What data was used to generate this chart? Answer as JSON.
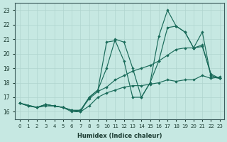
{
  "xlabel": "Humidex (Indice chaleur)",
  "xlim": [
    -0.5,
    23.5
  ],
  "ylim": [
    15.5,
    23.5
  ],
  "xticks": [
    0,
    1,
    2,
    3,
    4,
    5,
    6,
    7,
    8,
    9,
    10,
    11,
    12,
    13,
    14,
    15,
    16,
    17,
    18,
    19,
    20,
    21,
    22,
    23
  ],
  "yticks": [
    16,
    17,
    18,
    19,
    20,
    21,
    22,
    23
  ],
  "bg_color": "#c6e8e2",
  "grid_color": "#b0d4ce",
  "line_color": "#1a6b5a",
  "series": [
    {
      "x": [
        0,
        1,
        2,
        3,
        4,
        5,
        6,
        7,
        8,
        9,
        10,
        11,
        12,
        13,
        14,
        15,
        16,
        17,
        18,
        19,
        20,
        21,
        22,
        23
      ],
      "y": [
        16.6,
        16.4,
        16.3,
        16.4,
        16.4,
        16.3,
        16.0,
        16.0,
        16.4,
        17.0,
        17.3,
        17.5,
        17.7,
        17.8,
        17.8,
        17.9,
        18.0,
        18.2,
        18.1,
        18.2,
        18.2,
        18.5,
        18.3,
        18.4
      ]
    },
    {
      "x": [
        0,
        1,
        2,
        3,
        4,
        5,
        6,
        7,
        8,
        9,
        10,
        11,
        12,
        13,
        14,
        15,
        16,
        17,
        18,
        19,
        20,
        21,
        22,
        23
      ],
      "y": [
        16.6,
        16.4,
        16.3,
        16.5,
        16.4,
        16.3,
        16.1,
        16.1,
        16.9,
        17.4,
        17.7,
        18.2,
        18.5,
        18.8,
        19.0,
        19.2,
        19.5,
        19.9,
        20.3,
        20.4,
        20.4,
        21.5,
        18.4,
        18.3
      ]
    },
    {
      "x": [
        0,
        2,
        3,
        4,
        5,
        6,
        7,
        8,
        9,
        10,
        11,
        12,
        13,
        14,
        15,
        16,
        17,
        18,
        19,
        20,
        21,
        22,
        23
      ],
      "y": [
        16.6,
        16.3,
        16.5,
        16.4,
        16.3,
        16.1,
        16.1,
        17.0,
        17.5,
        20.8,
        20.9,
        19.5,
        17.0,
        17.0,
        18.0,
        19.5,
        21.8,
        21.9,
        21.5,
        20.4,
        20.5,
        18.6,
        18.3
      ]
    },
    {
      "x": [
        0,
        2,
        3,
        4,
        5,
        6,
        7,
        8,
        9,
        10,
        11,
        12,
        13,
        14,
        15,
        16,
        17,
        18,
        19,
        20,
        21,
        22,
        23
      ],
      "y": [
        16.6,
        16.3,
        16.5,
        16.4,
        16.3,
        16.1,
        16.0,
        17.0,
        17.5,
        19.0,
        21.0,
        20.8,
        19.0,
        17.0,
        18.0,
        21.2,
        23.0,
        21.9,
        21.5,
        20.4,
        20.6,
        18.5,
        18.3
      ]
    }
  ]
}
